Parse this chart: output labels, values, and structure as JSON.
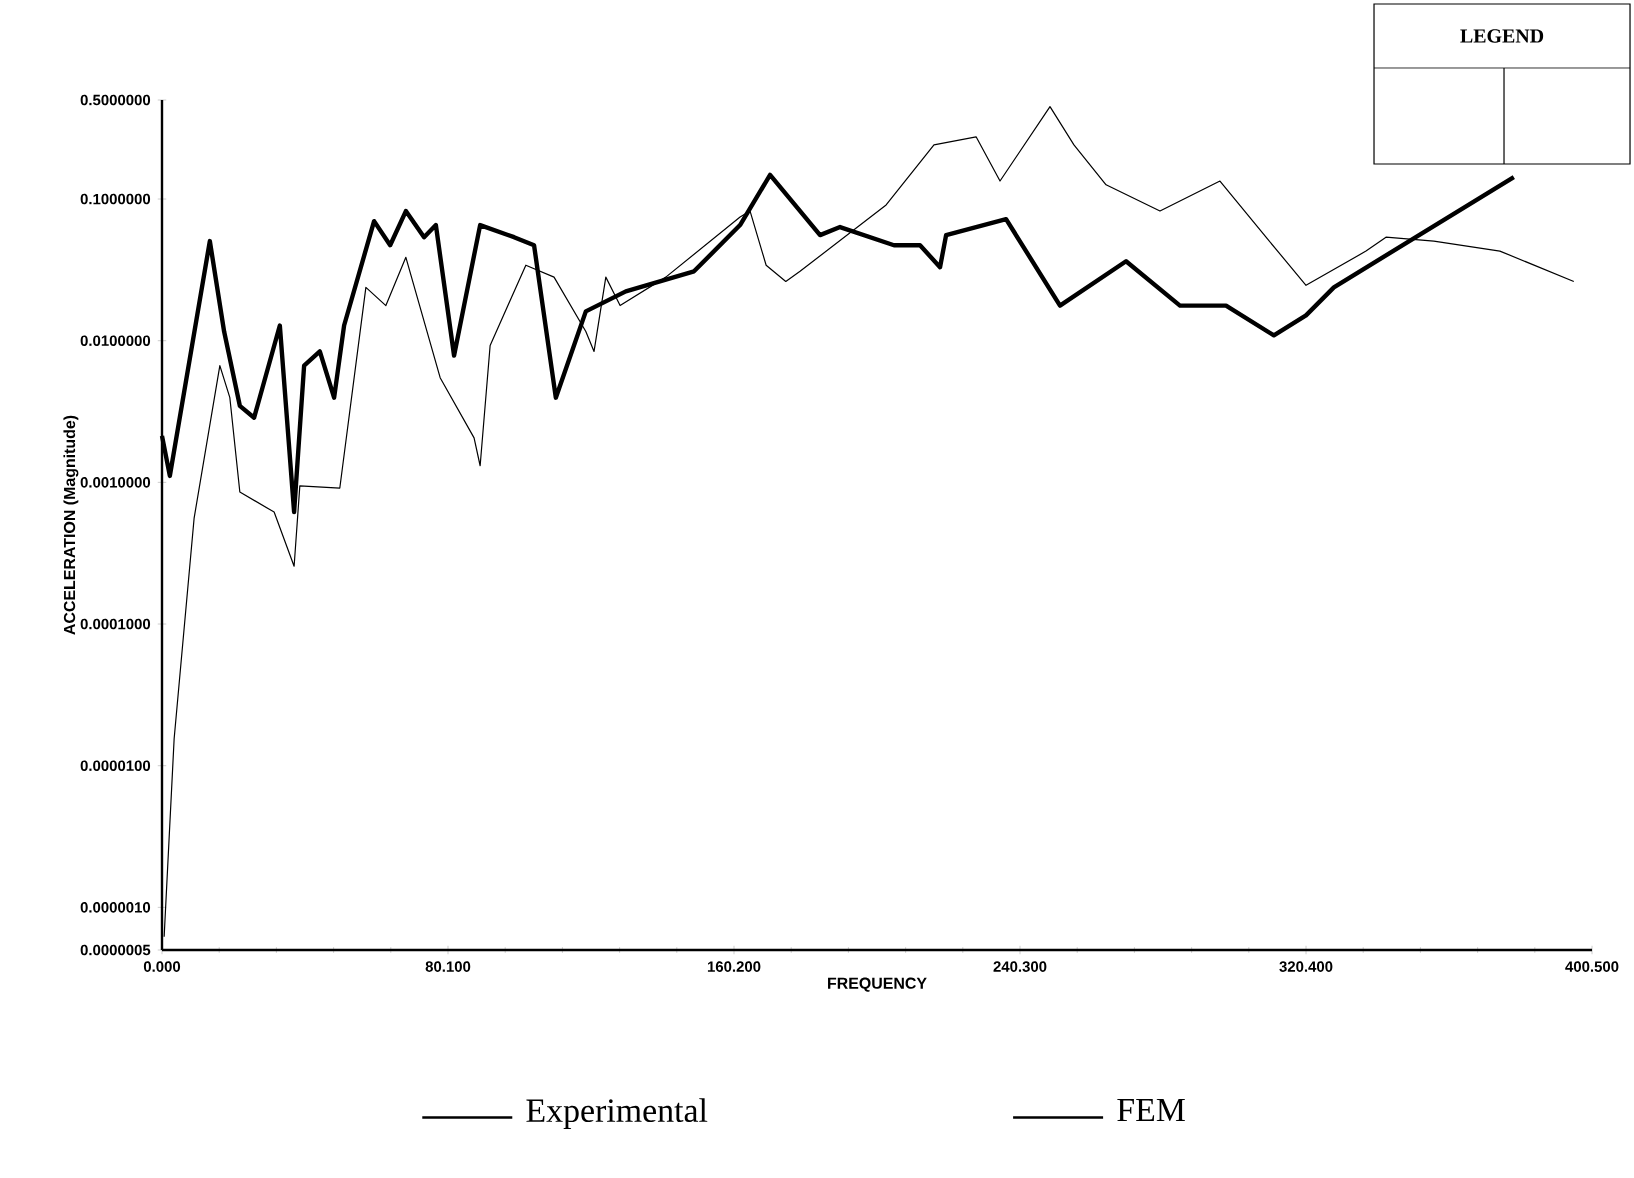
{
  "chart_data": {
    "type": "line",
    "xlabel": "FREQUENCY",
    "ylabel": "ACCELERATION (Magnitude)",
    "xlim": [
      0,
      400.5
    ],
    "xticks": [
      {
        "value": 0,
        "label": "0.000"
      },
      {
        "value": 80.1,
        "label": "80.100"
      },
      {
        "value": 160.2,
        "label": "160.200"
      },
      {
        "value": 240.3,
        "label": "240.300"
      },
      {
        "value": 320.4,
        "label": "320.400"
      },
      {
        "value": 400.5,
        "label": "400.500"
      }
    ],
    "ylim": [
      5e-07,
      0.5
    ],
    "log": "y",
    "yticks": [
      {
        "value": 5e-07,
        "label": "0.0000005"
      },
      {
        "value": 1e-06,
        "label": "0.0000010"
      },
      {
        "value": 1e-05,
        "label": "0.0000100"
      },
      {
        "value": 0.0001,
        "label": "0.0001000"
      },
      {
        "value": 0.001,
        "label": "0.0010000"
      },
      {
        "value": 0.01,
        "label": "0.0100000"
      },
      {
        "value": 0.1,
        "label": "0.1000000"
      },
      {
        "value": 0.5,
        "label": "0.5000000"
      }
    ],
    "legend": "bottom",
    "line_style": "solid",
    "marker": "none",
    "grid": false,
    "annotations": [
      "LEGEND"
    ],
    "series": [
      {
        "name": "Experimental",
        "color": "#000000",
        "x": [
          0,
          2.2,
          13.4,
          17.4,
          21.8,
          25.8,
          33.0,
          37.0,
          39.8,
          44.2,
          48.2,
          51.0,
          59.4,
          63.9,
          68.3,
          73.4,
          76.7,
          81.8,
          89.1,
          98.6,
          104.2,
          110.3,
          118.7,
          129.9,
          149.0,
          161.9,
          170.3,
          184.3,
          189.9,
          205.0,
          212.3,
          217.9,
          219.6,
          236.4,
          251.5,
          270.0,
          285.1,
          298.0,
          311.4,
          320.4,
          328.2,
          378.6
        ],
        "values": [
          0.00213,
          0.00111,
          0.0505,
          0.0116,
          0.00347,
          0.00286,
          0.0128,
          0.000617,
          0.00667,
          0.0084,
          0.00396,
          0.0128,
          0.0698,
          0.0472,
          0.0822,
          0.0538,
          0.0655,
          0.00785,
          0.0655,
          0.0538,
          0.0472,
          0.00396,
          0.0161,
          0.0223,
          0.0309,
          0.0655,
          0.148,
          0.0556,
          0.0634,
          0.0472,
          0.0472,
          0.033,
          0.0556,
          0.0721,
          0.0177,
          0.0364,
          0.0177,
          0.0177,
          0.0109,
          0.0151,
          0.0238,
          0.143
        ]
      },
      {
        "name": "FEM",
        "color": "#000000",
        "x": [
          0.6,
          3.4,
          9.0,
          16.2,
          19.0,
          21.8,
          31.4,
          37.0,
          38.6,
          49.8,
          57.1,
          62.7,
          68.3,
          77.9,
          87.4,
          89.1,
          91.9,
          101.9,
          109.8,
          118.7,
          121.0,
          124.3,
          128.3,
          141.1,
          161.9,
          164.7,
          169.2,
          174.7,
          178.7,
          202.8,
          216.2,
          228.0,
          234.7,
          248.7,
          255.4,
          264.4,
          279.5,
          296.3,
          309.2,
          320.4,
          337.2,
          342.8,
          356.2,
          374.7,
          395.4
        ],
        "values": [
          6.2e-07,
          1.55e-05,
          0.00056,
          0.00667,
          0.00396,
          0.000855,
          0.000617,
          0.000256,
          0.000944,
          0.000912,
          0.0238,
          0.0177,
          0.0388,
          0.00548,
          0.00206,
          0.00131,
          0.00925,
          0.0341,
          0.0281,
          0.0116,
          0.0084,
          0.0281,
          0.0177,
          0.0281,
          0.0746,
          0.0822,
          0.0341,
          0.0262,
          0.0309,
          0.0908,
          0.241,
          0.275,
          0.134,
          0.449,
          0.241,
          0.126,
          0.0822,
          0.134,
          0.0538,
          0.0246,
          0.0429,
          0.0538,
          0.0505,
          0.0429,
          0.0262
        ]
      }
    ]
  }
}
